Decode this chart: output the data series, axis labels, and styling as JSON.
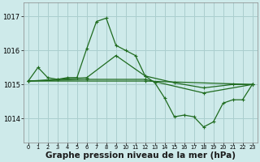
{
  "background_color": "#ceeaea",
  "grid_color": "#aacece",
  "line_color": "#1f6b1f",
  "marker_color": "#1f6b1f",
  "xlabel": "Graphe pression niveau de la mer (hPa)",
  "xlabel_fontsize": 7.5,
  "xlim": [
    -0.5,
    23.5
  ],
  "ylim": [
    1013.3,
    1017.4
  ],
  "yticks": [
    1014,
    1015,
    1016,
    1017
  ],
  "xticks": [
    0,
    1,
    2,
    3,
    4,
    5,
    6,
    7,
    8,
    9,
    10,
    11,
    12,
    13,
    14,
    15,
    16,
    17,
    18,
    19,
    20,
    21,
    22,
    23
  ],
  "series": [
    {
      "x": [
        0,
        1,
        2,
        3,
        4,
        5,
        6,
        7,
        8,
        9,
        10,
        11,
        12,
        13,
        14,
        15,
        16,
        17,
        18,
        19,
        20,
        21,
        22,
        23
      ],
      "y": [
        1015.1,
        1015.5,
        1015.2,
        1015.15,
        1015.2,
        1015.2,
        1016.05,
        1016.85,
        1016.95,
        1016.15,
        1016.0,
        1015.85,
        1015.25,
        1015.05,
        1014.6,
        1014.05,
        1014.1,
        1014.05,
        1013.75,
        1013.9,
        1014.45,
        1014.55,
        1014.55,
        1015.0
      ]
    },
    {
      "x": [
        0,
        3,
        6,
        9,
        12,
        15,
        18,
        21,
        23
      ],
      "y": [
        1015.1,
        1015.15,
        1015.2,
        1015.85,
        1015.25,
        1015.05,
        1014.9,
        1015.0,
        1015.0
      ]
    },
    {
      "x": [
        0,
        6,
        12,
        18,
        23
      ],
      "y": [
        1015.1,
        1015.15,
        1015.15,
        1014.75,
        1015.0
      ]
    },
    {
      "x": [
        0,
        12,
        23
      ],
      "y": [
        1015.1,
        1015.1,
        1015.0
      ]
    }
  ]
}
